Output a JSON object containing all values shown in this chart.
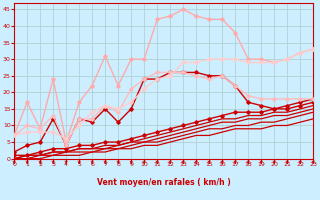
{
  "background_color": "#cceeff",
  "grid_color": "#aacccc",
  "xlabel": "Vent moyen/en rafales ( km/h )",
  "xlabel_color": "#cc0000",
  "tick_color": "#cc0000",
  "xlabel_fontsize": 5.5,
  "ylim": [
    0,
    47
  ],
  "xlim": [
    0,
    23
  ],
  "yticks": [
    0,
    5,
    10,
    15,
    20,
    25,
    30,
    35,
    40,
    45
  ],
  "xticks": [
    0,
    1,
    2,
    3,
    4,
    5,
    6,
    7,
    8,
    9,
    10,
    11,
    12,
    13,
    14,
    15,
    16,
    17,
    18,
    19,
    20,
    21,
    22,
    23
  ],
  "series": [
    {
      "x": [
        0,
        1,
        2,
        3,
        4,
        5,
        6,
        7,
        8,
        9,
        10,
        11,
        12,
        13,
        14,
        15,
        16,
        17,
        18,
        19,
        20,
        21,
        22,
        23
      ],
      "y": [
        1,
        1,
        2,
        3,
        3,
        4,
        4,
        5,
        5,
        6,
        7,
        8,
        9,
        10,
        11,
        12,
        13,
        14,
        14,
        14,
        15,
        15,
        16,
        17
      ],
      "color": "#cc0000",
      "lw": 1.0,
      "marker": "D",
      "ms": 1.8,
      "zorder": 4
    },
    {
      "x": [
        0,
        1,
        2,
        3,
        4,
        5,
        6,
        7,
        8,
        9,
        10,
        11,
        12,
        13,
        14,
        15,
        16,
        17,
        18,
        19,
        20,
        21,
        22,
        23
      ],
      "y": [
        0,
        1,
        1,
        2,
        2,
        3,
        3,
        4,
        4,
        5,
        6,
        7,
        8,
        9,
        10,
        11,
        12,
        12,
        13,
        13,
        14,
        14,
        15,
        16
      ],
      "color": "#cc0000",
      "lw": 0.9,
      "marker": null,
      "ms": 0,
      "zorder": 3
    },
    {
      "x": [
        0,
        1,
        2,
        3,
        4,
        5,
        6,
        7,
        8,
        9,
        10,
        11,
        12,
        13,
        14,
        15,
        16,
        17,
        18,
        19,
        20,
        21,
        22,
        23
      ],
      "y": [
        0,
        1,
        1,
        2,
        2,
        3,
        3,
        3,
        4,
        5,
        5,
        6,
        7,
        8,
        9,
        10,
        11,
        11,
        12,
        12,
        13,
        13,
        14,
        15
      ],
      "color": "#cc0000",
      "lw": 0.9,
      "marker": null,
      "ms": 0,
      "zorder": 3
    },
    {
      "x": [
        0,
        1,
        2,
        3,
        4,
        5,
        6,
        7,
        8,
        9,
        10,
        11,
        12,
        13,
        14,
        15,
        16,
        17,
        18,
        19,
        20,
        21,
        22,
        23
      ],
      "y": [
        0,
        0,
        1,
        1,
        2,
        2,
        2,
        3,
        3,
        4,
        5,
        5,
        6,
        7,
        8,
        9,
        9,
        10,
        10,
        11,
        11,
        12,
        13,
        14
      ],
      "color": "#cc0000",
      "lw": 0.9,
      "marker": null,
      "ms": 0,
      "zorder": 3
    },
    {
      "x": [
        0,
        1,
        2,
        3,
        4,
        5,
        6,
        7,
        8,
        9,
        10,
        11,
        12,
        13,
        14,
        15,
        16,
        17,
        18,
        19,
        20,
        21,
        22,
        23
      ],
      "y": [
        0,
        0,
        0,
        1,
        1,
        1,
        2,
        2,
        3,
        3,
        4,
        4,
        5,
        6,
        7,
        7,
        8,
        9,
        9,
        9,
        10,
        10,
        11,
        12
      ],
      "color": "#cc0000",
      "lw": 0.9,
      "marker": null,
      "ms": 0,
      "zorder": 3
    },
    {
      "x": [
        0,
        1,
        2,
        3,
        4,
        5,
        6,
        7,
        8,
        9,
        10,
        11,
        12,
        13,
        14,
        15,
        16,
        17,
        18,
        19,
        20,
        21,
        22,
        23
      ],
      "y": [
        2,
        4,
        5,
        12,
        4,
        12,
        11,
        15,
        11,
        15,
        24,
        24,
        26,
        26,
        26,
        25,
        25,
        22,
        17,
        16,
        15,
        16,
        17,
        18
      ],
      "color": "#cc0000",
      "lw": 1.0,
      "marker": "D",
      "ms": 1.8,
      "zorder": 4
    },
    {
      "x": [
        0,
        1,
        2,
        3,
        4,
        5,
        6,
        7,
        8,
        9,
        10,
        11,
        12,
        13,
        14,
        15,
        16,
        17,
        18,
        19,
        20,
        21,
        22,
        23
      ],
      "y": [
        7,
        17,
        9,
        24,
        5,
        17,
        22,
        31,
        22,
        30,
        30,
        42,
        43,
        45,
        43,
        42,
        42,
        38,
        30,
        30,
        29,
        30,
        32,
        33
      ],
      "color": "#ffaaaa",
      "lw": 1.0,
      "marker": "D",
      "ms": 1.8,
      "zorder": 4
    },
    {
      "x": [
        0,
        1,
        2,
        3,
        4,
        5,
        6,
        7,
        8,
        9,
        10,
        11,
        12,
        13,
        14,
        15,
        16,
        17,
        18,
        19,
        20,
        21,
        22,
        23
      ],
      "y": [
        7,
        10,
        9,
        13,
        4,
        12,
        12,
        16,
        14,
        21,
        24,
        26,
        26,
        26,
        25,
        24,
        25,
        22,
        19,
        18,
        18,
        18,
        18,
        18
      ],
      "color": "#ffbbbb",
      "lw": 1.0,
      "marker": "D",
      "ms": 1.8,
      "zorder": 4
    },
    {
      "x": [
        0,
        1,
        2,
        3,
        4,
        5,
        6,
        7,
        8,
        9,
        10,
        11,
        12,
        13,
        14,
        15,
        16,
        17,
        18,
        19,
        20,
        21,
        22,
        23
      ],
      "y": [
        7,
        8,
        8,
        8,
        6,
        10,
        14,
        16,
        15,
        17,
        21,
        24,
        25,
        29,
        29,
        30,
        30,
        30,
        29,
        29,
        29,
        30,
        32,
        33
      ],
      "color": "#ffcccc",
      "lw": 1.0,
      "marker": "D",
      "ms": 1.8,
      "zorder": 4
    }
  ]
}
